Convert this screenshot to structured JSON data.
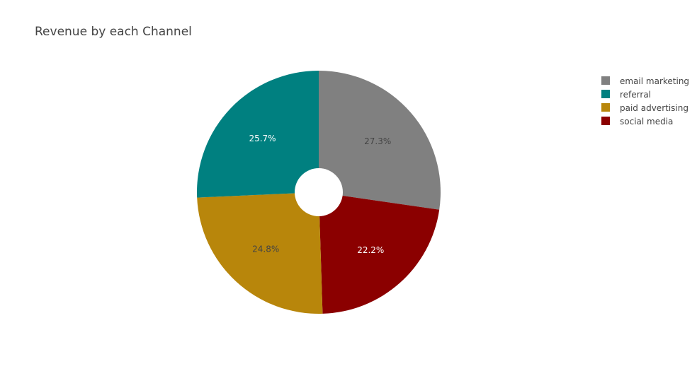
{
  "chart_data": {
    "type": "pie",
    "title": "Revenue by each Channel",
    "hole": true,
    "slices": [
      {
        "label": "email marketing",
        "percent": 27.3,
        "value_label": "27.3%",
        "color": "#808080",
        "text_color": "#444444"
      },
      {
        "label": "social media",
        "percent": 22.2,
        "value_label": "22.2%",
        "color": "#8b0000",
        "text_color": "#ffffff"
      },
      {
        "label": "paid advertising",
        "percent": 24.8,
        "value_label": "24.8%",
        "color": "#b8860b",
        "text_color": "#444444"
      },
      {
        "label": "referral",
        "percent": 25.7,
        "value_label": "25.7%",
        "color": "#008080",
        "text_color": "#ffffff"
      }
    ],
    "legend": {
      "position": "top-right",
      "items": [
        {
          "label": "email marketing",
          "color": "#808080"
        },
        {
          "label": "referral",
          "color": "#008080"
        },
        {
          "label": "paid advertising",
          "color": "#b8860b"
        },
        {
          "label": "social media",
          "color": "#8b0000"
        }
      ]
    }
  }
}
